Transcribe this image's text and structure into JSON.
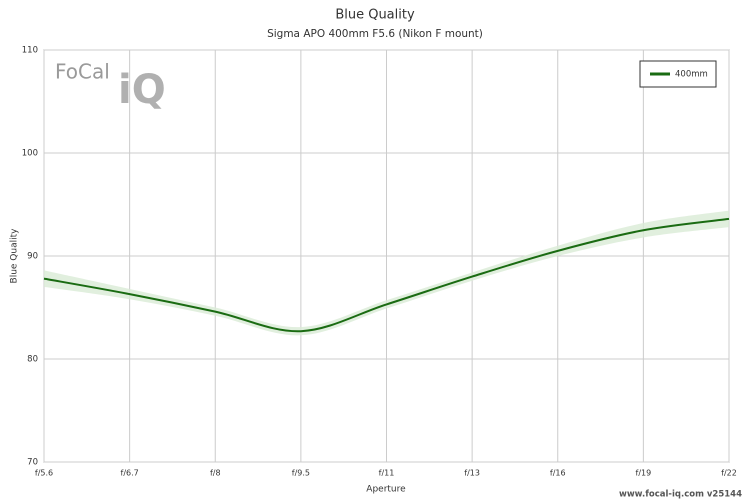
{
  "chart_data": {
    "type": "line",
    "title": "Blue Quality",
    "subtitle": "Sigma APO 400mm F5.6 (Nikon F mount)",
    "x_label": "Aperture",
    "y_label": "Blue Quality",
    "categories": [
      "f/5.6",
      "f/6.7",
      "f/8",
      "f/9.5",
      "f/11",
      "f/13",
      "f/16",
      "f/19",
      "f/22"
    ],
    "series": [
      {
        "name": "400mm",
        "color": "#1a6b12",
        "values": [
          87.8,
          86.3,
          84.6,
          82.7,
          85.3,
          88.0,
          90.5,
          92.5,
          93.6
        ]
      }
    ],
    "band": {
      "color": "#d9ebd6",
      "lower": [
        87.0,
        85.8,
        84.2,
        82.3,
        84.9,
        87.6,
        90.0,
        91.8,
        92.8
      ],
      "upper": [
        88.6,
        86.8,
        85.0,
        83.1,
        85.7,
        88.4,
        91.0,
        93.2,
        94.4
      ]
    },
    "ylim": [
      70,
      110
    ],
    "yticks": [
      70,
      80,
      90,
      100,
      110
    ],
    "grid": true,
    "legend": "top-right",
    "watermark": {
      "brand": "FoCal",
      "mark": "iQ"
    },
    "footer": "www.focal-iq.com  v25144"
  }
}
